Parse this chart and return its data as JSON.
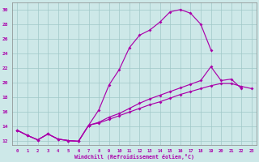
{
  "bg_color": "#cde8e8",
  "grid_color": "#a0c8c8",
  "line_color": "#aa00aa",
  "xlabel": "Windchill (Refroidissement éolien,°C)",
  "xlim_min": -0.5,
  "xlim_max": 23.5,
  "ylim_min": 11.5,
  "ylim_max": 31.0,
  "xticks": [
    0,
    1,
    2,
    3,
    4,
    5,
    6,
    7,
    8,
    9,
    10,
    11,
    12,
    13,
    14,
    15,
    16,
    17,
    18,
    19,
    20,
    21,
    22,
    23
  ],
  "yticks": [
    12,
    14,
    16,
    18,
    20,
    22,
    24,
    26,
    28,
    30
  ],
  "shared_x": [
    0,
    1,
    2,
    3,
    4,
    5,
    6,
    7
  ],
  "shared_y": [
    13.5,
    12.8,
    12.2,
    13.0,
    12.3,
    12.1,
    12.0,
    14.2
  ],
  "line1_x": [
    7,
    8,
    9,
    10,
    11,
    12,
    13,
    14,
    15,
    16,
    17,
    18,
    19
  ],
  "line1_y": [
    14.2,
    16.3,
    19.7,
    21.8,
    24.8,
    26.5,
    27.2,
    28.3,
    29.7,
    30.0,
    29.5,
    28.0,
    24.5
  ],
  "line2_x": [
    7,
    8,
    9,
    10,
    11,
    12,
    13,
    14,
    15,
    16,
    17,
    18,
    19,
    20,
    21,
    22
  ],
  "line2_y": [
    14.2,
    14.6,
    15.3,
    15.8,
    16.5,
    17.2,
    17.8,
    18.3,
    18.8,
    19.3,
    19.8,
    20.3,
    22.2,
    20.3,
    20.5,
    19.2
  ],
  "line3_x": [
    7,
    8,
    9,
    10,
    11,
    12,
    13,
    14,
    15,
    16,
    17,
    18,
    19,
    20,
    21,
    22,
    23
  ],
  "line3_y": [
    14.2,
    14.5,
    15.0,
    15.5,
    16.0,
    16.5,
    17.0,
    17.4,
    17.9,
    18.4,
    18.8,
    19.2,
    19.6,
    19.9,
    19.9,
    19.5,
    19.2
  ]
}
